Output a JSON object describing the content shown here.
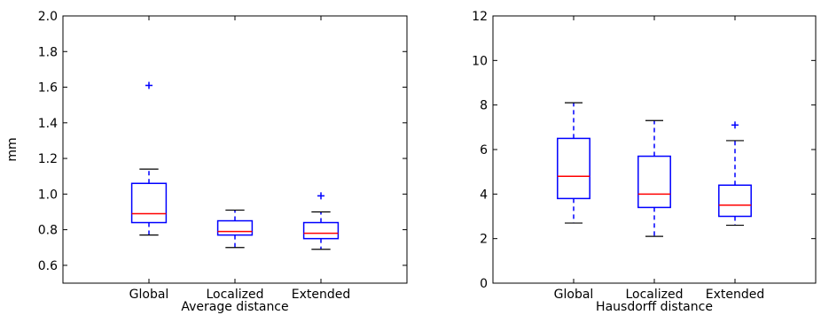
{
  "chart_data": [
    {
      "type": "box",
      "xlabel": "Average distance",
      "ylabel": "mm",
      "ylim": [
        0.5,
        2.0
      ],
      "yticks": [
        "0.6",
        "0.8",
        "1.0",
        "1.2",
        "1.4",
        "1.6",
        "1.8",
        "2.0"
      ],
      "categories": [
        "Global",
        "Localized",
        "Extended"
      ],
      "boxes": [
        {
          "whisker_low": 0.77,
          "q1": 0.84,
          "median": 0.89,
          "q3": 1.06,
          "whisker_high": 1.14,
          "outliers": [
            1.61
          ]
        },
        {
          "whisker_low": 0.7,
          "q1": 0.77,
          "median": 0.79,
          "q3": 0.85,
          "whisker_high": 0.91,
          "outliers": []
        },
        {
          "whisker_low": 0.69,
          "q1": 0.75,
          "median": 0.78,
          "q3": 0.84,
          "whisker_high": 0.9,
          "outliers": [
            0.99
          ]
        }
      ]
    },
    {
      "type": "box",
      "xlabel": "Hausdorff distance",
      "ylabel": "",
      "ylim": [
        0,
        12
      ],
      "yticks": [
        "0",
        "2",
        "4",
        "6",
        "8",
        "10",
        "12"
      ],
      "categories": [
        "Global",
        "Localized",
        "Extended"
      ],
      "boxes": [
        {
          "whisker_low": 2.7,
          "q1": 3.8,
          "median": 4.8,
          "q3": 6.5,
          "whisker_high": 8.1,
          "outliers": []
        },
        {
          "whisker_low": 2.1,
          "q1": 3.4,
          "median": 4.0,
          "q3": 5.7,
          "whisker_high": 7.3,
          "outliers": []
        },
        {
          "whisker_low": 2.6,
          "q1": 3.0,
          "median": 3.5,
          "q3": 4.4,
          "whisker_high": 6.4,
          "outliers": [
            7.1
          ]
        }
      ]
    }
  ],
  "colors": {
    "box": "#0000ff",
    "median": "#ff0000",
    "axis": "#000000"
  }
}
